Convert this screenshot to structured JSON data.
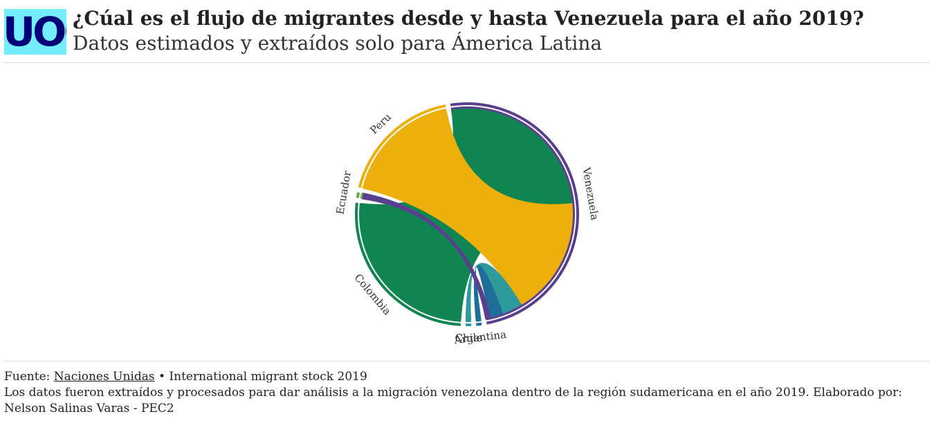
{
  "header": {
    "logo_text": "UOC",
    "title": "¿Cúal es el flujo de migrantes desde y hasta Venezuela para el año 2019?",
    "subtitle": "Datos estimados y extraídos solo para Ámerica Latina"
  },
  "chart_data": {
    "type": "chord",
    "title": "¿Cúal es el flujo de migrantes desde y hasta Venezuela para el año 2019?",
    "subtitle": "Datos estimados y extraídos solo para Ámerica Latina",
    "nodes": [
      {
        "name": "Venezuela",
        "color": "#5b3f8f"
      },
      {
        "name": "Argentina",
        "color": "#1f6e9a"
      },
      {
        "name": "Chile",
        "color": "#2e9a9a"
      },
      {
        "name": "Colombia",
        "color": "#108552"
      },
      {
        "name": "Ecuador",
        "color": "#6aaa50"
      },
      {
        "name": "Peru",
        "color": "#ecaf0c"
      }
    ],
    "flows": [
      {
        "from": "Venezuela",
        "to": "Colombia",
        "value": 1000,
        "color": "#108552"
      },
      {
        "from": "Venezuela",
        "to": "Peru",
        "value": 700,
        "color": "#ecaf0c"
      },
      {
        "from": "Venezuela",
        "to": "Chile",
        "value": 120,
        "color": "#2e9a9a"
      },
      {
        "from": "Venezuela",
        "to": "Argentina",
        "value": 80,
        "color": "#1f6e9a"
      },
      {
        "from": "Venezuela",
        "to": "Ecuador",
        "value": 25,
        "color": "#5b3f8f"
      }
    ]
  },
  "footer": {
    "source_prefix": "Fuente:",
    "source_link": "Naciones Unidas",
    "source_suffix": "• International migrant stock 2019",
    "note": "Los datos fueron extraídos y procesados para dar análisis a la migración venezolana dentro de la región sudamericana en el año 2019. Elaborado por: Nelson Salinas Varas - PEC2"
  }
}
